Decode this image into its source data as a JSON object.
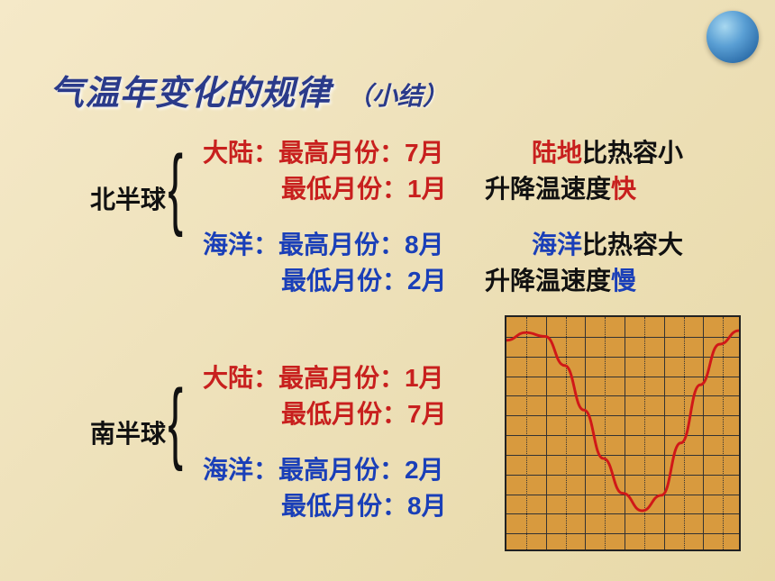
{
  "title": "气温年变化的规律",
  "subtitle": "（小结）",
  "north": {
    "label": "北半球",
    "land_prefix": "大陆：",
    "land_high": "最高月份：",
    "land_high_val": "7月",
    "land_low": "最低月份：",
    "land_low_val": "1月",
    "land_expl_1a": "陆地",
    "land_expl_1b": "比热容小",
    "land_expl_2a": "升降温",
    "land_expl_2b": "速度",
    "land_expl_2c": "快",
    "ocean_prefix": "海洋：",
    "ocean_high": "最高月份：",
    "ocean_high_val": "8月",
    "ocean_low": "最低月份：",
    "ocean_low_val": "2月",
    "ocean_expl_1a": "海洋",
    "ocean_expl_1b": "比热容大",
    "ocean_expl_2a": "升降温",
    "ocean_expl_2b": "速度",
    "ocean_expl_2c": "慢"
  },
  "south": {
    "label": "南半球",
    "land_prefix": "大陆：",
    "land_high": "最高月份：",
    "land_high_val": "1月",
    "land_low": "最低月份：",
    "land_low_val": "7月",
    "ocean_prefix": "海洋：",
    "ocean_high": "最高月份：",
    "ocean_high_val": "2月",
    "ocean_low": "最低月份：",
    "ocean_low_val": "8月"
  },
  "chart": {
    "type": "line",
    "background_color": "#d89a3e",
    "grid_color": "#333333",
    "border_color": "#222222",
    "curve_color": "#d01818",
    "curve_width": 3,
    "grid_cols": 12,
    "grid_rows": 12,
    "xlim": [
      0,
      12
    ],
    "ylim": [
      0,
      12
    ],
    "points": [
      [
        0,
        10.8
      ],
      [
        1,
        11.2
      ],
      [
        2,
        11.0
      ],
      [
        3,
        9.5
      ],
      [
        4,
        7.2
      ],
      [
        5,
        4.7
      ],
      [
        6,
        2.9
      ],
      [
        7,
        2.0
      ],
      [
        8,
        2.8
      ],
      [
        9,
        5.5
      ],
      [
        10,
        8.5
      ],
      [
        11,
        10.6
      ],
      [
        12,
        11.3
      ]
    ]
  }
}
